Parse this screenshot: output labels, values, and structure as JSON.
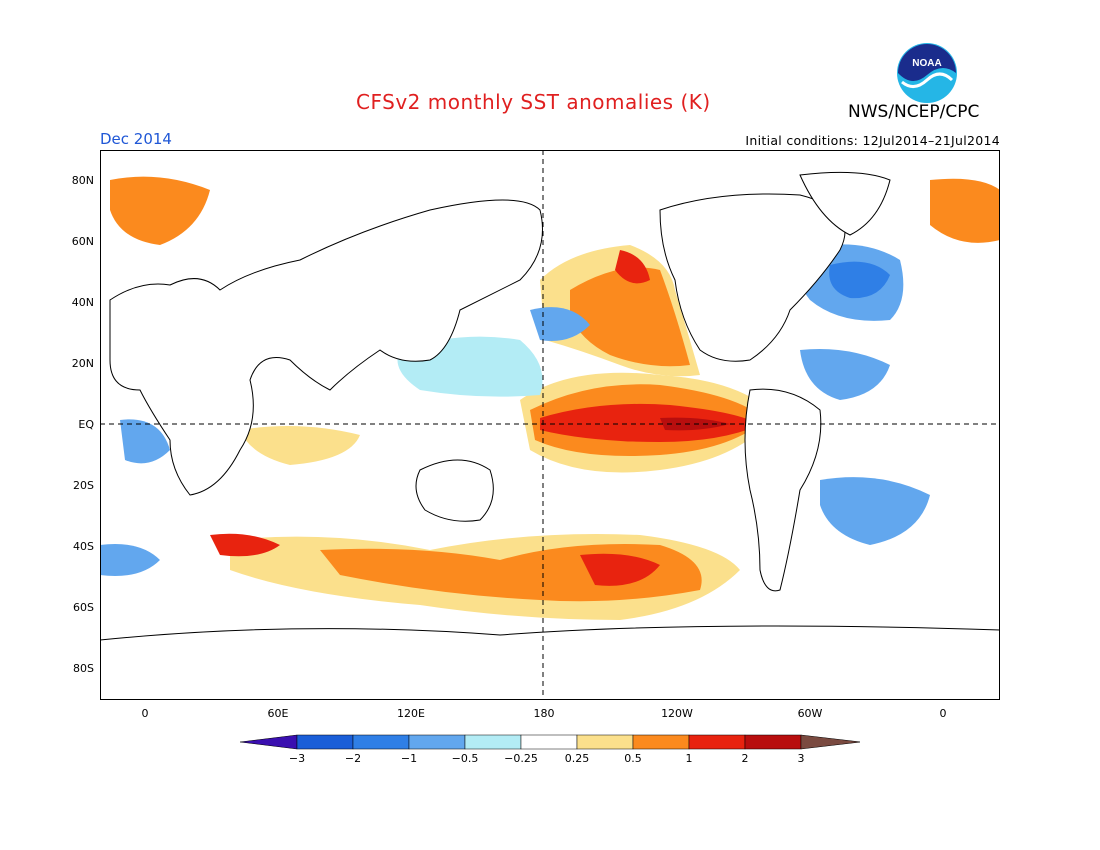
{
  "header": {
    "title": "CFSv2 monthly SST anomalies (K)",
    "agency": "NWS/NCEP/CPC",
    "valid_month": "Dec 2014",
    "initial_conditions": "Initial conditions: 12Jul2014–21Jul2014",
    "logo_text": "NOAA"
  },
  "axes": {
    "lat_labels": [
      "80N",
      "60N",
      "40N",
      "20N",
      "EQ",
      "20S",
      "40S",
      "60S",
      "80S"
    ],
    "lon_labels": [
      "0",
      "60E",
      "120E",
      "180",
      "120W",
      "60W",
      "0"
    ]
  },
  "colorbar": {
    "tick_labels": [
      "−3",
      "−2",
      "−1",
      "−0.5",
      "−0.25",
      "0.25",
      "0.5",
      "1",
      "2",
      "3"
    ],
    "colors": [
      "#3a0fb0",
      "#1a5ed8",
      "#2f7fe6",
      "#62a7ee",
      "#b3ecf5",
      "#ffffff",
      "#fbe08c",
      "#fb8a1e",
      "#e8230f",
      "#b80e0e",
      "#7a4a40"
    ]
  }
}
